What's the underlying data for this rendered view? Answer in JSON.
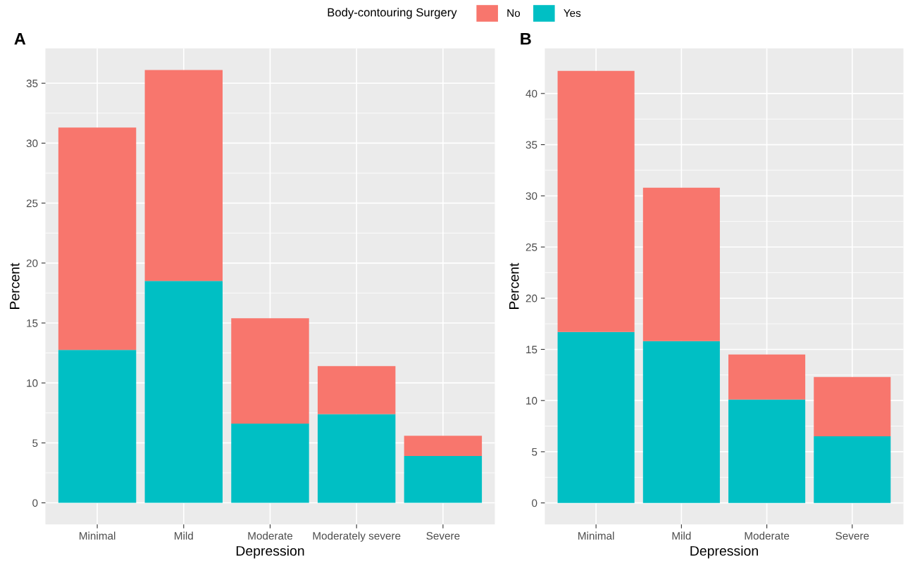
{
  "chart_data": [
    {
      "type": "bar",
      "title": "A",
      "xlabel": "Depression",
      "ylabel": "Percent",
      "legend_title": "Body-contouring Surgery",
      "legend": "top",
      "stacked": true,
      "grid": true,
      "categories": [
        "Minimal",
        "Mild",
        "Moderate",
        "Moderately severe",
        "Severe"
      ],
      "series": [
        {
          "name": "Yes",
          "color": "#00bfc4",
          "values": [
            12.75,
            18.5,
            6.6,
            7.4,
            3.9
          ]
        },
        {
          "name": "No",
          "color": "#f8766d",
          "values": [
            18.55,
            17.6,
            8.8,
            4.0,
            1.7
          ]
        }
      ],
      "ylim": [
        -1.8,
        37.9
      ],
      "yticks": [
        0,
        5,
        10,
        15,
        20,
        25,
        30,
        35
      ]
    },
    {
      "type": "bar",
      "title": "B",
      "xlabel": "Depression",
      "ylabel": "Percent",
      "stacked": true,
      "grid": true,
      "categories": [
        "Minimal",
        "Mild",
        "Moderate",
        "Severe"
      ],
      "series": [
        {
          "color": "#00bfc4",
          "values": [
            16.7,
            15.8,
            10.1,
            6.5
          ]
        },
        {
          "color": "#f8766d",
          "values": [
            25.5,
            15.0,
            4.4,
            5.8
          ]
        }
      ],
      "ylim": [
        -2.1,
        44.4
      ],
      "yticks": [
        0,
        5,
        10,
        15,
        20,
        25,
        30,
        35,
        40
      ]
    }
  ]
}
